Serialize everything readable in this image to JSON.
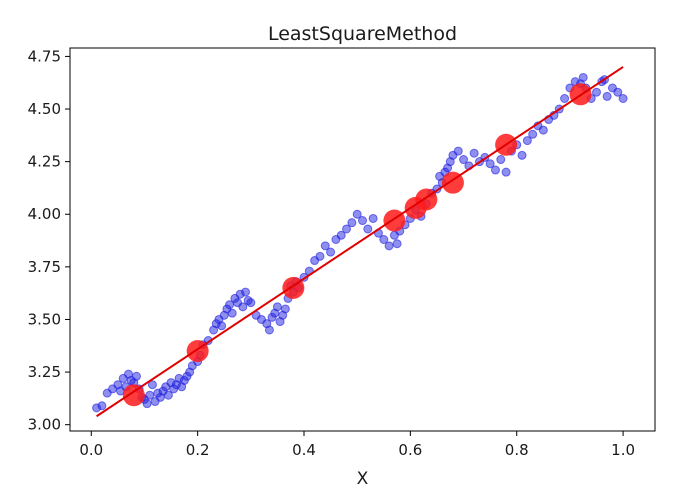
{
  "chart_data": {
    "type": "scatter",
    "title": "LeastSquareMethod",
    "xlabel": "X",
    "ylabel": "",
    "xlim": [
      -0.04,
      1.06
    ],
    "ylim": [
      2.97,
      4.79
    ],
    "xticks": [
      "0.0",
      "0.2",
      "0.4",
      "0.6",
      "0.8",
      "1.0"
    ],
    "yticks": [
      "3.00",
      "3.25",
      "3.50",
      "3.75",
      "4.00",
      "4.25",
      "4.50",
      "4.75"
    ],
    "grid": false,
    "legend": "none",
    "colors": {
      "points": "#1f1fe0",
      "samples": "#ff1a1a",
      "fit_line": "#e00000"
    },
    "fit_line": {
      "x": [
        0.01,
        1.0
      ],
      "y": [
        3.04,
        4.7
      ]
    },
    "series": [
      {
        "kind": "small-points",
        "x": [
          0.01,
          0.02,
          0.03,
          0.04,
          0.05,
          0.055,
          0.06,
          0.065,
          0.07,
          0.075,
          0.08,
          0.085,
          0.09,
          0.095,
          0.1,
          0.105,
          0.11,
          0.115,
          0.12,
          0.125,
          0.13,
          0.135,
          0.14,
          0.145,
          0.15,
          0.155,
          0.16,
          0.165,
          0.17,
          0.175,
          0.18,
          0.185,
          0.19,
          0.2,
          0.205,
          0.21,
          0.22,
          0.23,
          0.235,
          0.24,
          0.245,
          0.25,
          0.255,
          0.26,
          0.265,
          0.27,
          0.275,
          0.28,
          0.285,
          0.29,
          0.295,
          0.3,
          0.31,
          0.32,
          0.33,
          0.335,
          0.34,
          0.345,
          0.35,
          0.355,
          0.36,
          0.365,
          0.37,
          0.375,
          0.38,
          0.385,
          0.39,
          0.4,
          0.41,
          0.42,
          0.43,
          0.44,
          0.45,
          0.46,
          0.47,
          0.48,
          0.49,
          0.5,
          0.51,
          0.52,
          0.53,
          0.54,
          0.55,
          0.56,
          0.57,
          0.575,
          0.58,
          0.59,
          0.6,
          0.61,
          0.62,
          0.63,
          0.64,
          0.65,
          0.655,
          0.66,
          0.665,
          0.67,
          0.675,
          0.68,
          0.69,
          0.7,
          0.71,
          0.72,
          0.73,
          0.74,
          0.75,
          0.76,
          0.77,
          0.78,
          0.79,
          0.8,
          0.81,
          0.82,
          0.83,
          0.84,
          0.85,
          0.86,
          0.87,
          0.88,
          0.89,
          0.9,
          0.91,
          0.92,
          0.925,
          0.93,
          0.94,
          0.95,
          0.96,
          0.965,
          0.97,
          0.98,
          0.99,
          1.0
        ],
        "y": [
          3.08,
          3.09,
          3.15,
          3.17,
          3.19,
          3.16,
          3.22,
          3.18,
          3.24,
          3.21,
          3.2,
          3.23,
          3.17,
          3.13,
          3.12,
          3.1,
          3.14,
          3.19,
          3.11,
          3.15,
          3.13,
          3.16,
          3.18,
          3.14,
          3.2,
          3.17,
          3.19,
          3.22,
          3.18,
          3.21,
          3.23,
          3.25,
          3.28,
          3.3,
          3.33,
          3.38,
          3.4,
          3.45,
          3.48,
          3.5,
          3.47,
          3.52,
          3.55,
          3.57,
          3.53,
          3.6,
          3.58,
          3.62,
          3.56,
          3.63,
          3.59,
          3.58,
          3.52,
          3.5,
          3.48,
          3.45,
          3.51,
          3.53,
          3.56,
          3.49,
          3.52,
          3.55,
          3.6,
          3.66,
          3.63,
          3.68,
          3.65,
          3.7,
          3.73,
          3.78,
          3.8,
          3.85,
          3.82,
          3.88,
          3.9,
          3.93,
          3.96,
          4.0,
          3.97,
          3.93,
          3.98,
          3.91,
          3.88,
          3.85,
          3.9,
          3.86,
          3.92,
          3.95,
          3.98,
          4.02,
          3.99,
          4.05,
          4.1,
          4.12,
          4.18,
          4.15,
          4.2,
          4.22,
          4.25,
          4.28,
          4.3,
          4.26,
          4.23,
          4.29,
          4.25,
          4.27,
          4.24,
          4.21,
          4.26,
          4.2,
          4.3,
          4.33,
          4.28,
          4.35,
          4.38,
          4.42,
          4.4,
          4.45,
          4.47,
          4.5,
          4.55,
          4.6,
          4.63,
          4.62,
          4.65,
          4.6,
          4.55,
          4.58,
          4.63,
          4.64,
          4.56,
          4.6,
          4.58,
          4.55
        ]
      },
      {
        "kind": "large-samples",
        "x": [
          0.08,
          0.2,
          0.38,
          0.57,
          0.61,
          0.63,
          0.68,
          0.78,
          0.92
        ],
        "y": [
          3.14,
          3.35,
          3.65,
          3.97,
          4.03,
          4.07,
          4.15,
          4.33,
          4.57
        ]
      }
    ]
  }
}
